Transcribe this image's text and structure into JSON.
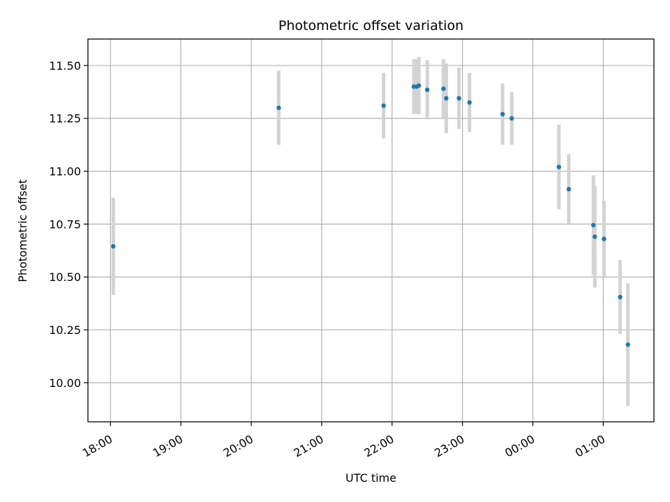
{
  "chart_data": {
    "type": "scatter",
    "title": "Photometric offset variation",
    "xlabel": "UTC time",
    "ylabel": "Photometric offset",
    "grid": true,
    "x_unit": "UTC time (hours after 18:00 on the first evening; values past 24 fall after midnight)",
    "xlim": [
      17.68,
      25.72
    ],
    "ylim": [
      9.815,
      11.625
    ],
    "x_ticks": [
      {
        "value": 18,
        "label": "18:00"
      },
      {
        "value": 19,
        "label": "19:00"
      },
      {
        "value": 20,
        "label": "20:00"
      },
      {
        "value": 21,
        "label": "21:00"
      },
      {
        "value": 22,
        "label": "22:00"
      },
      {
        "value": 23,
        "label": "23:00"
      },
      {
        "value": 24,
        "label": "00:00"
      },
      {
        "value": 25,
        "label": "01:00"
      }
    ],
    "y_ticks": [
      {
        "value": 10.0,
        "label": "10.00"
      },
      {
        "value": 10.25,
        "label": "10.25"
      },
      {
        "value": 10.5,
        "label": "10.50"
      },
      {
        "value": 10.75,
        "label": "10.75"
      },
      {
        "value": 11.0,
        "label": "11.00"
      },
      {
        "value": 11.25,
        "label": "11.25"
      },
      {
        "value": 11.5,
        "label": "11.50"
      }
    ],
    "colors": {
      "points": "#1f77b4",
      "errorbars": "#d3d3d3",
      "grid": "#b0b0b0"
    },
    "points": [
      {
        "x": 18.04,
        "y": 10.645,
        "err": 0.23
      },
      {
        "x": 20.39,
        "y": 11.3,
        "err": 0.175
      },
      {
        "x": 21.88,
        "y": 11.31,
        "err": 0.155
      },
      {
        "x": 22.31,
        "y": 11.4,
        "err": 0.13
      },
      {
        "x": 22.35,
        "y": 11.4,
        "err": 0.13
      },
      {
        "x": 22.38,
        "y": 11.405,
        "err": 0.135
      },
      {
        "x": 22.5,
        "y": 11.385,
        "err": 0.14
      },
      {
        "x": 22.73,
        "y": 11.39,
        "err": 0.14
      },
      {
        "x": 22.77,
        "y": 11.345,
        "err": 0.165
      },
      {
        "x": 22.95,
        "y": 11.345,
        "err": 0.145
      },
      {
        "x": 23.1,
        "y": 11.325,
        "err": 0.14
      },
      {
        "x": 23.57,
        "y": 11.27,
        "err": 0.145
      },
      {
        "x": 23.7,
        "y": 11.25,
        "err": 0.125
      },
      {
        "x": 24.37,
        "y": 11.02,
        "err": 0.2
      },
      {
        "x": 24.51,
        "y": 10.915,
        "err": 0.165
      },
      {
        "x": 24.86,
        "y": 10.745,
        "err": 0.235
      },
      {
        "x": 24.88,
        "y": 10.69,
        "err": 0.24
      },
      {
        "x": 25.01,
        "y": 10.68,
        "err": 0.18
      },
      {
        "x": 25.24,
        "y": 10.405,
        "err": 0.175
      },
      {
        "x": 25.35,
        "y": 10.18,
        "err": 0.29
      }
    ]
  }
}
